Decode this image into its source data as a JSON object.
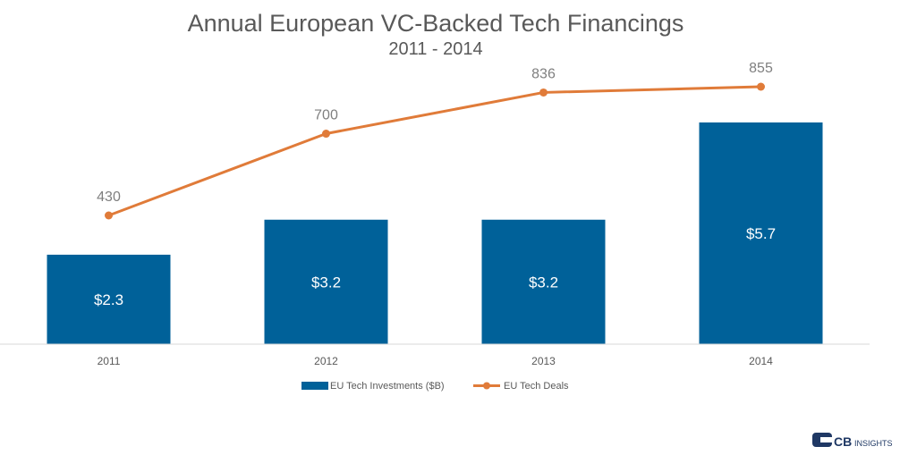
{
  "chart_data": {
    "type": "bar",
    "title": "Annual European VC-Backed Tech Financings",
    "subtitle": "2011 - 2014",
    "categories": [
      "2011",
      "2012",
      "2013",
      "2014"
    ],
    "series": [
      {
        "name": "EU Tech Investments ($B)",
        "type": "bar",
        "values": [
          2.3,
          3.2,
          3.2,
          5.7
        ],
        "labels": [
          "$2.3",
          "$3.2",
          "$3.2",
          "$5.7"
        ],
        "color": "#006199"
      },
      {
        "name": "EU Tech Deals",
        "type": "line",
        "values": [
          430,
          700,
          836,
          855
        ],
        "labels": [
          "430",
          "700",
          "836",
          "855"
        ],
        "color": "#e07b39"
      }
    ],
    "bar_axis_range": [
      0,
      7
    ],
    "line_axis_range": [
      0,
      1000
    ],
    "grid": false,
    "legend_position": "bottom"
  },
  "brand": {
    "name_bold": "CB",
    "name_small": "INSIGHTS",
    "accent": "#1f3864"
  }
}
